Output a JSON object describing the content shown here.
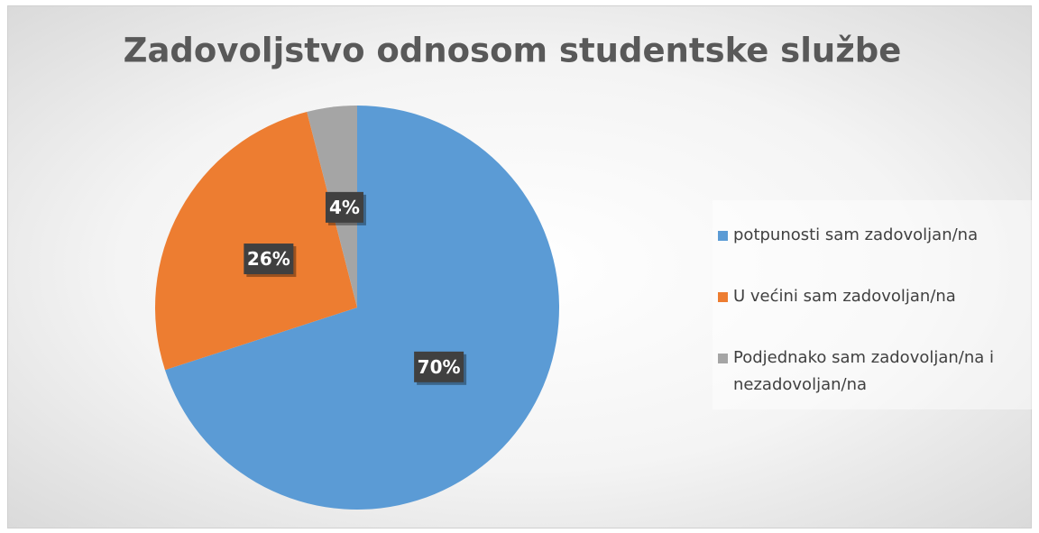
{
  "chart_data": {
    "type": "pie",
    "title": "Zadovoljstvo odnosom studentske službe",
    "categories": [
      "potpunosti sam zadovoljan/na",
      "U većini sam zadovoljan/na",
      "Podjednako sam zadovoljan/na i nezadovoljan/na"
    ],
    "values": [
      70,
      26,
      4
    ],
    "value_labels": [
      "70%",
      "26%",
      "4%"
    ],
    "colors": [
      "#5b9bd5",
      "#ed7d31",
      "#a5a5a5"
    ],
    "legend": "right"
  }
}
